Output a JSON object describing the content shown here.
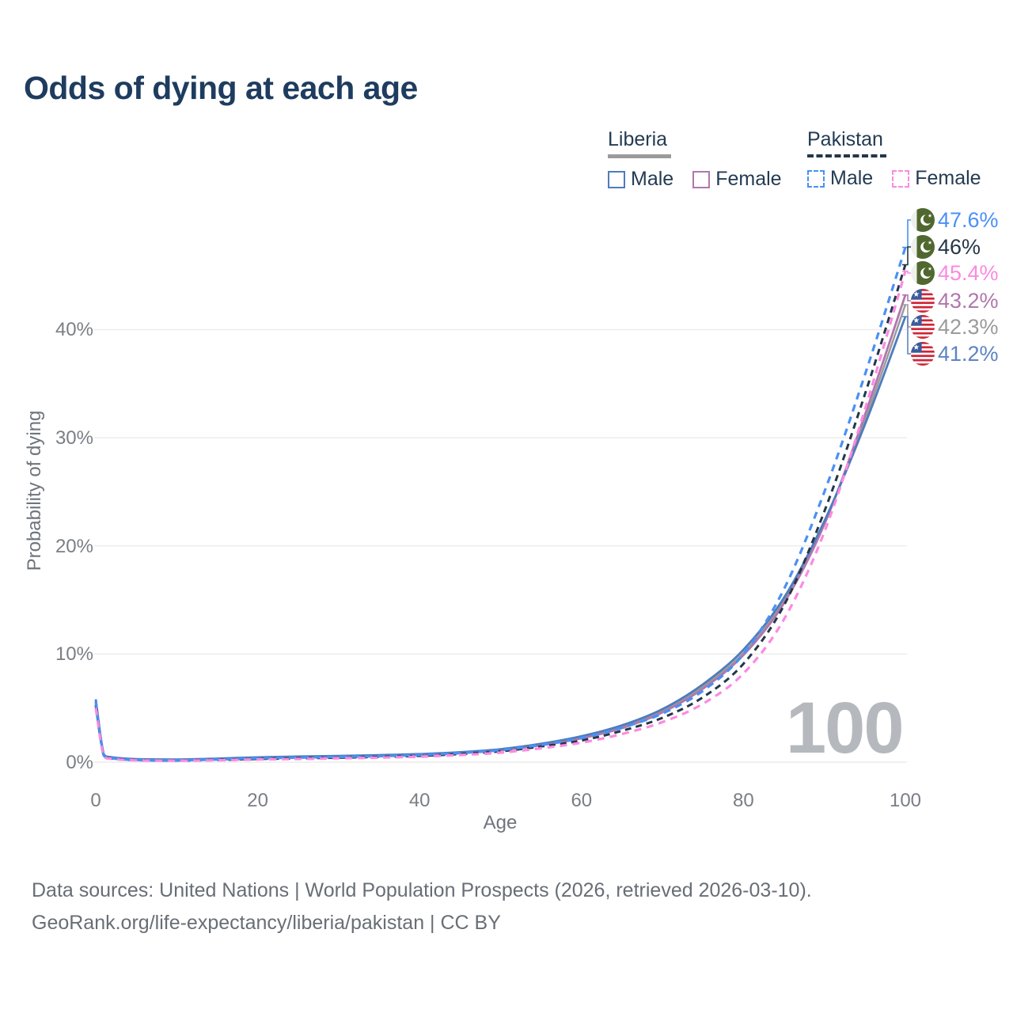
{
  "title": "Odds of dying at each age",
  "legend": {
    "groups": [
      {
        "country": "Liberia",
        "line_style": "solid",
        "swatch_color": "#9b9b9b",
        "items": [
          {
            "label": "Male",
            "color": "#4e7cbc"
          },
          {
            "label": "Female",
            "color": "#b077ad"
          }
        ]
      },
      {
        "country": "Pakistan",
        "line_style": "dashed",
        "swatch_color": "#243749",
        "items": [
          {
            "label": "Male",
            "color": "#4a90f5"
          },
          {
            "label": "Female",
            "color": "#fb8ae1"
          }
        ]
      }
    ]
  },
  "watermark": "100",
  "footer_line1": "Data sources: United Nations | World Population Prospects (2026, retrieved 2026-03-10).",
  "footer_line2": "GeoRank.org/life-expectancy/liberia/pakistan | CC BY",
  "colors": {
    "title_text": "#1e3c5f",
    "axis_text": "#7a7e85",
    "gridline": "#ececec",
    "footer_text": "#686e76",
    "watermark": "#b5b9bd",
    "liberia_male": "#4e7cbc",
    "liberia_female": "#b077ad",
    "liberia_total": "#9b9b9b",
    "pakistan_male": "#4a90f5",
    "pakistan_female": "#fb8ae1",
    "pakistan_total": "#243749"
  },
  "chart_data": {
    "type": "line",
    "title": "Odds of dying at each age",
    "xlabel": "Age",
    "ylabel": "Probability of dying",
    "xlim": [
      0,
      100
    ],
    "ylim_pct": [
      0,
      48
    ],
    "grid": "horizontal",
    "x_ticks": [
      "0",
      "20",
      "40",
      "60",
      "80",
      "100"
    ],
    "x_tick_values": [
      0,
      20,
      40,
      60,
      80,
      100
    ],
    "y_ticks": [
      "0%",
      "10%",
      "20%",
      "30%",
      "40%"
    ],
    "y_tick_values": [
      0,
      10,
      20,
      30,
      40
    ],
    "ages": [
      0,
      1,
      2,
      5,
      10,
      15,
      20,
      25,
      30,
      35,
      40,
      45,
      50,
      55,
      60,
      65,
      70,
      75,
      80,
      85,
      90,
      95,
      100
    ],
    "series": [
      {
        "name": "Liberia Total",
        "country": "Liberia",
        "sex": "Both",
        "color": "#9b9b9b",
        "dashed": false,
        "end_label": "42.3%",
        "values": [
          5.5,
          0.65,
          0.42,
          0.26,
          0.23,
          0.3,
          0.4,
          0.47,
          0.53,
          0.6,
          0.7,
          0.87,
          1.15,
          1.63,
          2.3,
          3.28,
          4.75,
          7.0,
          10.1,
          14.9,
          22.1,
          31.6,
          42.3
        ]
      },
      {
        "name": "Liberia Female",
        "country": "Liberia",
        "sex": "Female",
        "color": "#b077ad",
        "dashed": false,
        "end_label": "43.2%",
        "values": [
          5.2,
          0.6,
          0.4,
          0.24,
          0.21,
          0.27,
          0.36,
          0.42,
          0.48,
          0.55,
          0.65,
          0.82,
          1.1,
          1.55,
          2.2,
          3.15,
          4.6,
          6.8,
          9.9,
          14.7,
          22.0,
          32.1,
          43.2
        ]
      },
      {
        "name": "Liberia Male",
        "country": "Liberia",
        "sex": "Male",
        "color": "#4e7cbc",
        "dashed": false,
        "end_label": "41.2%",
        "values": [
          5.8,
          0.7,
          0.45,
          0.28,
          0.25,
          0.33,
          0.45,
          0.52,
          0.58,
          0.65,
          0.75,
          0.92,
          1.2,
          1.7,
          2.4,
          3.4,
          4.9,
          7.2,
          10.4,
          15.2,
          22.3,
          31.2,
          41.2
        ]
      },
      {
        "name": "Pakistan Total",
        "country": "Pakistan",
        "sex": "Both",
        "color": "#243749",
        "dashed": true,
        "end_label": "46%",
        "values": [
          5.3,
          0.55,
          0.32,
          0.18,
          0.15,
          0.2,
          0.29,
          0.35,
          0.41,
          0.48,
          0.58,
          0.75,
          1.0,
          1.45,
          2.0,
          2.9,
          4.1,
          6.0,
          9.1,
          14.5,
          23.2,
          34.0,
          46.0
        ]
      },
      {
        "name": "Pakistan Male",
        "country": "Pakistan",
        "sex": "Male",
        "color": "#4a90f5",
        "dashed": true,
        "end_label": "47.6%",
        "values": [
          5.6,
          0.6,
          0.35,
          0.2,
          0.17,
          0.24,
          0.35,
          0.42,
          0.48,
          0.55,
          0.66,
          0.85,
          1.12,
          1.6,
          2.25,
          3.2,
          4.5,
          6.6,
          10.0,
          16.0,
          25.0,
          35.8,
          47.6
        ]
      },
      {
        "name": "Pakistan Female",
        "country": "Pakistan",
        "sex": "Female",
        "color": "#fb8ae1",
        "dashed": true,
        "end_label": "45.4%",
        "values": [
          5.0,
          0.5,
          0.3,
          0.16,
          0.13,
          0.17,
          0.24,
          0.29,
          0.35,
          0.42,
          0.5,
          0.66,
          0.88,
          1.28,
          1.8,
          2.6,
          3.7,
          5.4,
          8.2,
          13.2,
          21.3,
          32.6,
          45.4
        ]
      }
    ],
    "end_labels": [
      {
        "value": "47.6%",
        "series": "Pakistan Male",
        "flag": "pakistan",
        "color": "#4a90f5"
      },
      {
        "value": "46%",
        "series": "Pakistan Total",
        "flag": "pakistan",
        "color": "#243749"
      },
      {
        "value": "45.4%",
        "series": "Pakistan Female",
        "flag": "pakistan",
        "color": "#fb8ae1"
      },
      {
        "value": "43.2%",
        "series": "Liberia Female",
        "flag": "liberia",
        "color": "#b077ad"
      },
      {
        "value": "42.3%",
        "series": "Liberia Total",
        "flag": "liberia",
        "color": "#9b9b9b"
      },
      {
        "value": "41.2%",
        "series": "Liberia Male",
        "flag": "liberia",
        "color": "#5b84c4"
      }
    ],
    "legend_position": "top-right",
    "watermark_age": "100"
  }
}
